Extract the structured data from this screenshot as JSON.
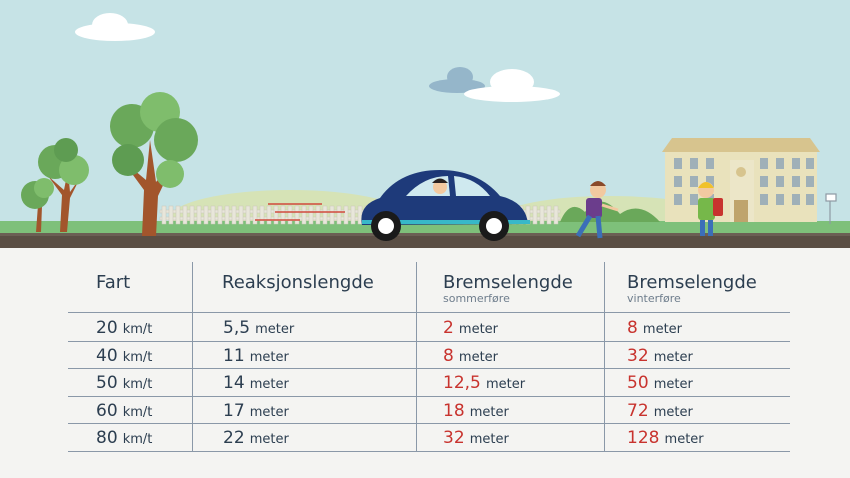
{
  "table": {
    "headers": [
      {
        "title": "Fart",
        "sub": ""
      },
      {
        "title": "Reaksjonslengde",
        "sub": ""
      },
      {
        "title": "Bremselengde",
        "sub": "sommerføre"
      },
      {
        "title": "Bremselengde",
        "sub": "vinterføre"
      }
    ],
    "rows": [
      {
        "speed": "20",
        "speed_unit": "km/t",
        "reaction": "5,5",
        "summer": "2",
        "winter": "8"
      },
      {
        "speed": "40",
        "speed_unit": "km/t",
        "reaction": "11",
        "summer": "8",
        "winter": "32"
      },
      {
        "speed": "50",
        "speed_unit": "km/t",
        "reaction": "14",
        "summer": "12,5",
        "winter": "50"
      },
      {
        "speed": "60",
        "speed_unit": "km/t",
        "reaction": "17",
        "summer": "18",
        "winter": "72"
      },
      {
        "speed": "80",
        "speed_unit": "km/t",
        "reaction": "22",
        "summer": "32",
        "winter": "128"
      }
    ],
    "unit": "meter"
  },
  "colors": {
    "sky": "#c6e3e6",
    "grass": "#7ec07a",
    "road": "#5a4e44",
    "car": "#1e3a7a",
    "accent_red": "#c8332e",
    "text": "#2c3e50"
  },
  "scene": {
    "icons": [
      "cloud-icon",
      "tree-icon",
      "fence-icon",
      "car-icon",
      "child-icon",
      "school-building-icon",
      "basketball-hoop-icon"
    ]
  }
}
